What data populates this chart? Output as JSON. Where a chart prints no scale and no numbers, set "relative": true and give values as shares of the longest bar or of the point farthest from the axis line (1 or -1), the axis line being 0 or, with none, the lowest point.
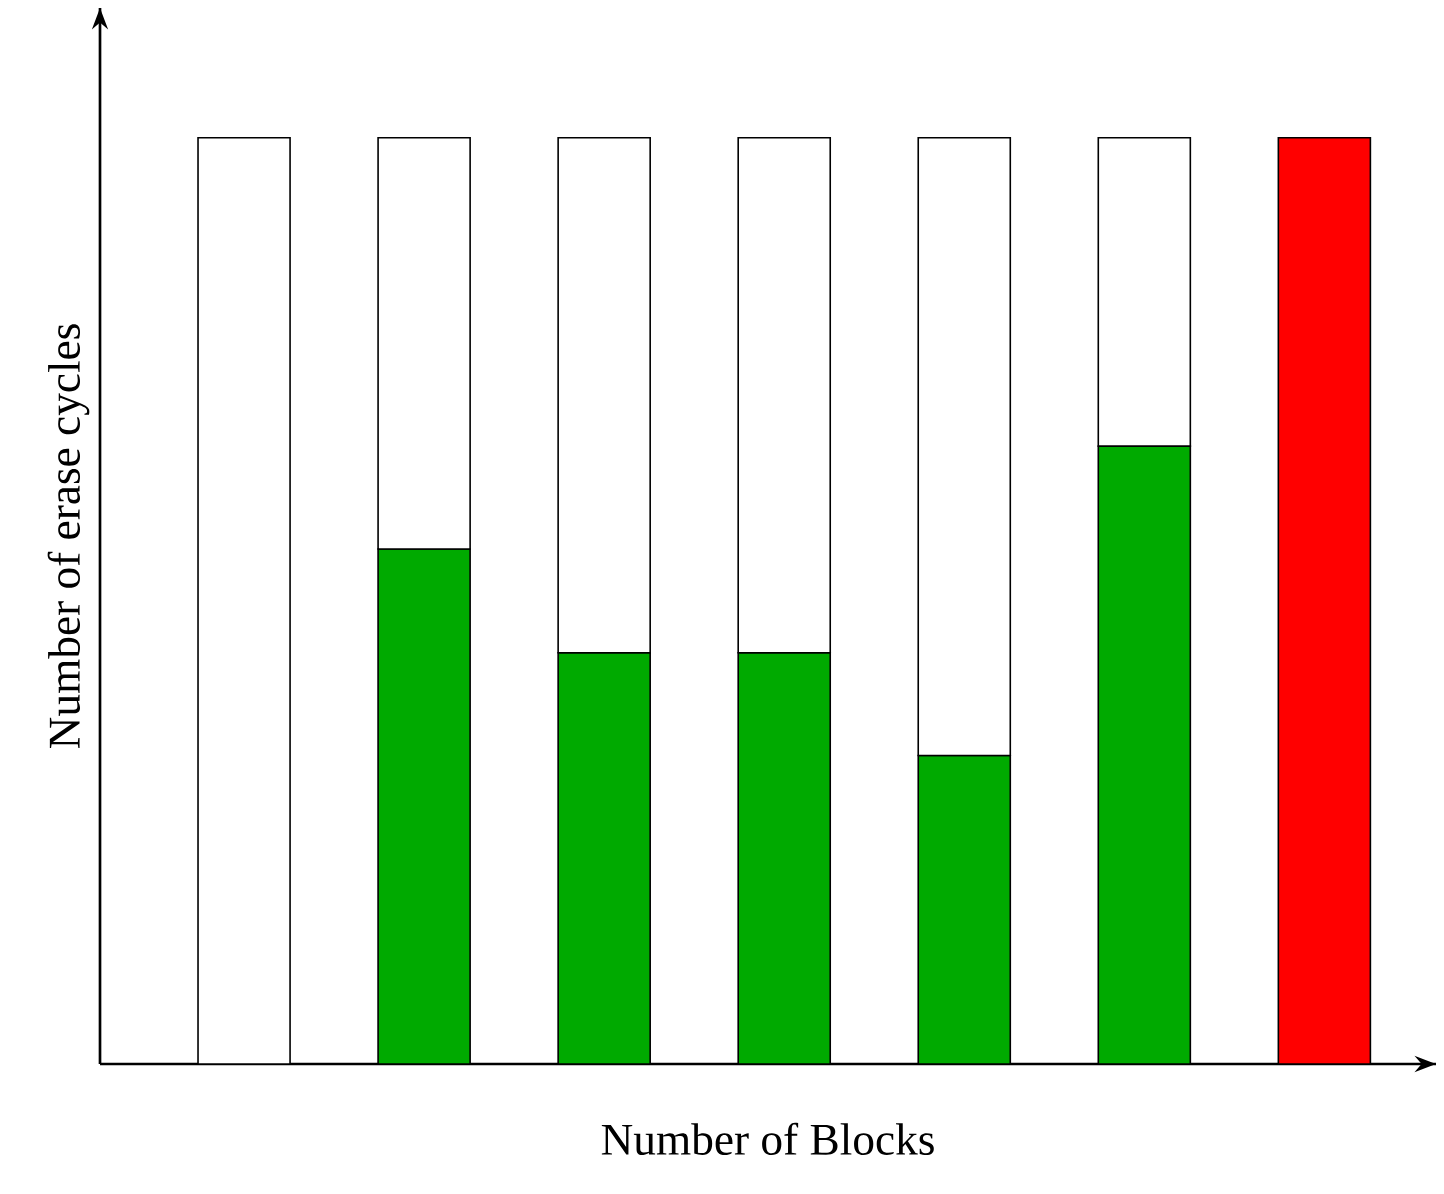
{
  "chart_data": {
    "type": "bar",
    "stacked": true,
    "relative": true,
    "tick_labels": false,
    "xlabel": "Number of Blocks",
    "ylabel": "Number of erase cycles",
    "categories": [
      null,
      null,
      null,
      null,
      null,
      null,
      null
    ],
    "series": [
      {
        "colors": [
          "#00aa00",
          "#00aa00",
          "#00aa00",
          "#00aa00",
          "#00aa00",
          "#00aa00",
          "#ff0000"
        ],
        "values": [
          0,
          0.556,
          0.444,
          0.444,
          0.333,
          0.667,
          1
        ]
      },
      {
        "color": "#ffffff",
        "values": [
          1,
          0.444,
          0.556,
          0.556,
          0.667,
          0.333,
          0
        ]
      }
    ]
  }
}
